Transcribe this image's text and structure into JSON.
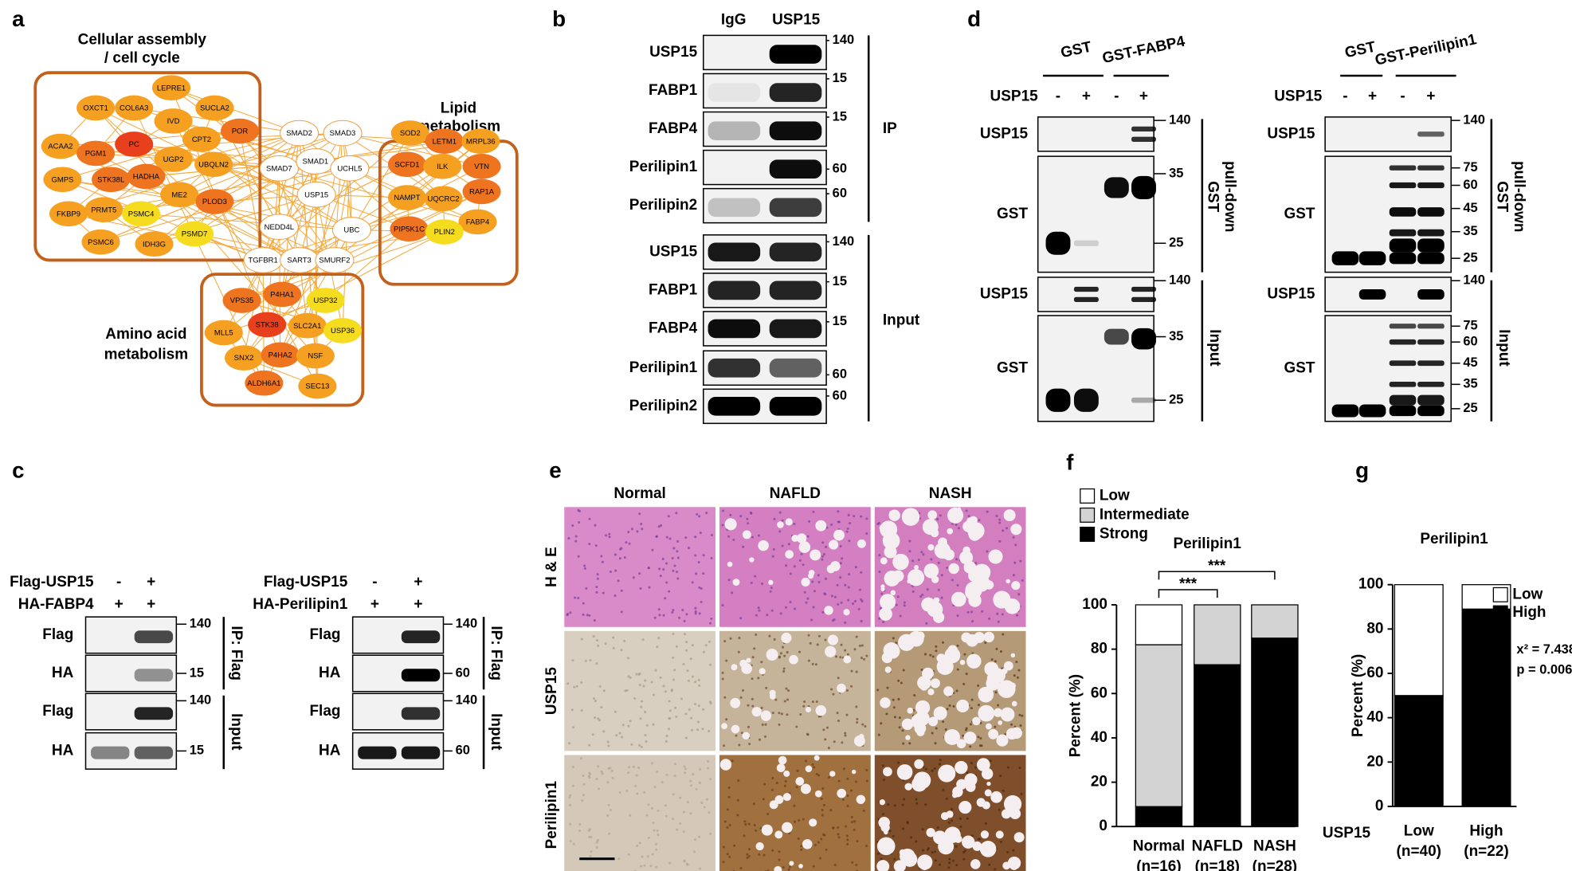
{
  "panel_a": {
    "label": "a",
    "groups": [
      {
        "title": [
          "Cellular assembly",
          "/ cell cycle"
        ]
      },
      {
        "title": [
          "Lipid",
          "metabolism"
        ]
      },
      {
        "title": [
          "Amino acid",
          "metabolism"
        ]
      }
    ],
    "nodes": [
      {
        "label": "LEPRE1",
        "color": "#f5a020"
      },
      {
        "label": "OXCT1",
        "color": "#f5a020"
      },
      {
        "label": "COL6A3",
        "color": "#f5a020"
      },
      {
        "label": "IVD",
        "color": "#f5a020"
      },
      {
        "label": "SUCLA2",
        "color": "#f5a020"
      },
      {
        "label": "ACAA2",
        "color": "#f5a020"
      },
      {
        "label": "PGM1",
        "color": "#ee7420"
      },
      {
        "label": "PC",
        "color": "#e8401c"
      },
      {
        "label": "CPT2",
        "color": "#f5a020"
      },
      {
        "label": "POR",
        "color": "#ee7420"
      },
      {
        "label": "UGP2",
        "color": "#f5a020"
      },
      {
        "label": "UBQLN2",
        "color": "#f5a020"
      },
      {
        "label": "GMPS",
        "color": "#f5a020"
      },
      {
        "label": "STK38L",
        "color": "#ee7420"
      },
      {
        "label": "HADHA",
        "color": "#ee7420"
      },
      {
        "label": "ME2",
        "color": "#f5a020"
      },
      {
        "label": "PLOD3",
        "color": "#ee7420"
      },
      {
        "label": "FKBP9",
        "color": "#f5a020"
      },
      {
        "label": "PRMT5",
        "color": "#f5a020"
      },
      {
        "label": "PSMC4",
        "color": "#f5dc1e"
      },
      {
        "label": "PSMD7",
        "color": "#f5dc1e"
      },
      {
        "label": "PSMC6",
        "color": "#f5a020"
      },
      {
        "label": "IDH3G",
        "color": "#f5a020"
      },
      {
        "label": "SMAD2",
        "color": "#ffffff"
      },
      {
        "label": "SMAD3",
        "color": "#ffffff"
      },
      {
        "label": "SMAD7",
        "color": "#ffffff"
      },
      {
        "label": "SMAD1",
        "color": "#ffffff"
      },
      {
        "label": "UCHL5",
        "color": "#ffffff"
      },
      {
        "label": "USP15",
        "color": "#ffffff"
      },
      {
        "label": "NEDD4L",
        "color": "#ffffff"
      },
      {
        "label": "UBC",
        "color": "#ffffff"
      },
      {
        "label": "TGFBR1",
        "color": "#ffffff"
      },
      {
        "label": "SART3",
        "color": "#ffffff"
      },
      {
        "label": "SMURF2",
        "color": "#ffffff"
      },
      {
        "label": "SOD2",
        "color": "#f5a020"
      },
      {
        "label": "LETM1",
        "color": "#ee7420"
      },
      {
        "label": "MRPL36",
        "color": "#f5a020"
      },
      {
        "label": "SCFD1",
        "color": "#ee7420"
      },
      {
        "label": "ILK",
        "color": "#f5a020"
      },
      {
        "label": "VTN",
        "color": "#ee7420"
      },
      {
        "label": "NAMPT",
        "color": "#f5a020"
      },
      {
        "label": "UQCRC2",
        "color": "#f5a020"
      },
      {
        "label": "RAP1A",
        "color": "#ee7420"
      },
      {
        "label": "FABP4",
        "color": "#f5a020"
      },
      {
        "label": "PIP5K1C",
        "color": "#ee7420"
      },
      {
        "label": "PLIN2",
        "color": "#f5dc1e"
      },
      {
        "label": "P4HA1",
        "color": "#ee7420"
      },
      {
        "label": "VPS35",
        "color": "#ee7420"
      },
      {
        "label": "USP32",
        "color": "#f5dc1e"
      },
      {
        "label": "STK38",
        "color": "#e8401c"
      },
      {
        "label": "SLC2A1",
        "color": "#f5a020"
      },
      {
        "label": "USP36",
        "color": "#f5dc1e"
      },
      {
        "label": "MLL5",
        "color": "#f5a020"
      },
      {
        "label": "SNX2",
        "color": "#f5a020"
      },
      {
        "label": "P4HA2",
        "color": "#ee7420"
      },
      {
        "label": "NSF",
        "color": "#f5a020"
      },
      {
        "label": "ALDH6A1",
        "color": "#ee7420"
      },
      {
        "label": "SEC13",
        "color": "#f5a020"
      }
    ]
  },
  "panel_b": {
    "label": "b",
    "columns": [
      "IgG",
      "USP15"
    ],
    "ip_rows": [
      {
        "protein": "USP15",
        "markers": [
          "140"
        ]
      },
      {
        "protein": "FABP1",
        "markers": [
          "15"
        ]
      },
      {
        "protein": "FABP4",
        "markers": [
          "15"
        ]
      },
      {
        "protein": "Perilipin1",
        "markers": [
          "60"
        ]
      },
      {
        "protein": "Perilipin2",
        "markers": [
          "60"
        ]
      }
    ],
    "ip_label": "IP",
    "input_rows": [
      {
        "protein": "USP15",
        "markers": [
          "140"
        ]
      },
      {
        "protein": "FABP1",
        "markers": [
          "15"
        ]
      },
      {
        "protein": "FABP4",
        "markers": [
          "15"
        ]
      },
      {
        "protein": "Perilipin1",
        "markers": [
          "60"
        ]
      },
      {
        "protein": "Perilipin2",
        "markers": [
          "60"
        ]
      }
    ],
    "input_label": "Input"
  },
  "panel_c": {
    "label": "c",
    "blots": [
      {
        "header": [
          {
            "name": "Flag-USP15",
            "signs": [
              "-",
              "+"
            ]
          },
          {
            "name": "HA-FABP4",
            "signs": [
              "+",
              "+"
            ]
          }
        ],
        "rows": [
          {
            "protein": "Flag",
            "markers": [
              "140"
            ]
          },
          {
            "protein": "HA",
            "markers": [
              "15"
            ]
          },
          {
            "protein": "Flag",
            "markers": [
              "140"
            ]
          },
          {
            "protein": "HA",
            "markers": [
              "15"
            ]
          }
        ],
        "side_labels": [
          "IP: Flag",
          "Input"
        ]
      },
      {
        "header": [
          {
            "name": "Flag-USP15",
            "signs": [
              "-",
              "+"
            ]
          },
          {
            "name": "HA-Perilipin1",
            "signs": [
              "+",
              "+"
            ]
          }
        ],
        "rows": [
          {
            "protein": "Flag",
            "markers": [
              "140"
            ]
          },
          {
            "protein": "HA",
            "markers": [
              "60"
            ]
          },
          {
            "protein": "Flag",
            "markers": [
              "140"
            ]
          },
          {
            "protein": "HA",
            "markers": [
              "60"
            ]
          }
        ],
        "side_labels": [
          "IP: Flag",
          "Input"
        ]
      }
    ]
  },
  "panel_d": {
    "label": "d",
    "blots": [
      {
        "groups": [
          "GST",
          "GST-FABP4"
        ],
        "treatment": "USP15",
        "signs": [
          "-",
          "+",
          "-",
          "+"
        ],
        "rows": [
          {
            "protein": "USP15",
            "markers": [
              "140"
            ]
          },
          {
            "protein": "GST",
            "markers": [
              "35",
              "25"
            ]
          },
          {
            "protein": "USP15",
            "markers": [
              "140"
            ]
          },
          {
            "protein": "GST",
            "markers": [
              "35",
              "25"
            ]
          }
        ],
        "side_labels": [
          [
            "GST",
            "pull-down"
          ],
          [
            "Input"
          ]
        ]
      },
      {
        "groups": [
          "GST",
          "GST-Perilipin1"
        ],
        "treatment": "USP15",
        "signs": [
          "-",
          "+",
          "-",
          "+"
        ],
        "rows": [
          {
            "protein": "USP15",
            "markers": [
              "140"
            ]
          },
          {
            "protein": "GST",
            "markers": [
              "75",
              "60",
              "45",
              "35",
              "25"
            ]
          },
          {
            "protein": "USP15",
            "markers": [
              "140"
            ]
          },
          {
            "protein": "GST",
            "markers": [
              "75",
              "60",
              "45",
              "35",
              "25"
            ]
          }
        ],
        "side_labels": [
          [
            "GST",
            "pull-down"
          ],
          [
            "Input"
          ]
        ]
      }
    ]
  },
  "panel_e": {
    "label": "e",
    "columns": [
      "Normal",
      "NAFLD",
      "NASH"
    ],
    "rows": [
      "H & E",
      "USP15",
      "Perilipin1"
    ]
  },
  "chart_data": [
    {
      "type": "bar",
      "panel_label": "f",
      "title": "Perilipin1",
      "categories": [
        "Normal",
        "NAFLD",
        "NASH"
      ],
      "category_sublabels": [
        "(n=16)",
        "(n=18)",
        "(n=28)"
      ],
      "series": [
        {
          "name": "Strong",
          "color": "#000000",
          "values": [
            9,
            73,
            85
          ]
        },
        {
          "name": "Intermediate",
          "color": "#d3d3d3",
          "values": [
            73,
            27,
            15
          ]
        },
        {
          "name": "Low",
          "color": "#ffffff",
          "values": [
            18,
            0,
            0
          ]
        }
      ],
      "ylabel": "Percent (%)",
      "ylim": [
        0,
        100
      ],
      "yticks": [
        0,
        20,
        40,
        60,
        80,
        100
      ],
      "annotations": [
        "***",
        "***"
      ]
    },
    {
      "type": "bar",
      "panel_label": "g",
      "title": "Perilipin1",
      "xlabel": "USP15",
      "categories": [
        "Low",
        "High"
      ],
      "category_sublabels": [
        "(n=40)",
        "(n=22)"
      ],
      "series": [
        {
          "name": "High",
          "color": "#000000",
          "values": [
            50,
            89
          ]
        },
        {
          "name": "Low",
          "color": "#ffffff",
          "values": [
            50,
            11
          ]
        }
      ],
      "ylabel": "Percent (%)",
      "ylim": [
        0,
        100
      ],
      "yticks": [
        0,
        20,
        40,
        60,
        80,
        100
      ],
      "annotations": [
        "x² = 7.438",
        "p = 0.006"
      ]
    }
  ]
}
